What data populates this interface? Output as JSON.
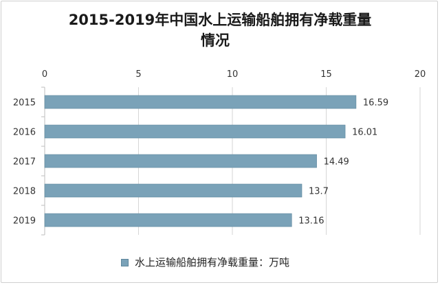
{
  "chart_data": {
    "type": "bar",
    "orientation": "horizontal",
    "title_lines": [
      "2015-2019年中国水上运输船舶拥有净载重量",
      "情况"
    ],
    "categories": [
      "2015",
      "2016",
      "2017",
      "2018",
      "2019"
    ],
    "series": [
      {
        "name": "水上运输船舶拥有净载重量：万吨",
        "values": [
          16.59,
          16.01,
          14.49,
          13.7,
          13.16
        ]
      }
    ],
    "data_labels": [
      "16.59",
      "16.01",
      "14.49",
      "13.7",
      "13.16"
    ],
    "x_ticks": [
      "0",
      "5",
      "10",
      "15",
      "20"
    ],
    "xlim": [
      0,
      20
    ],
    "x_axis_position": "top",
    "grid": true,
    "legend": "bottom",
    "bar_color": "#7aa2b8"
  }
}
